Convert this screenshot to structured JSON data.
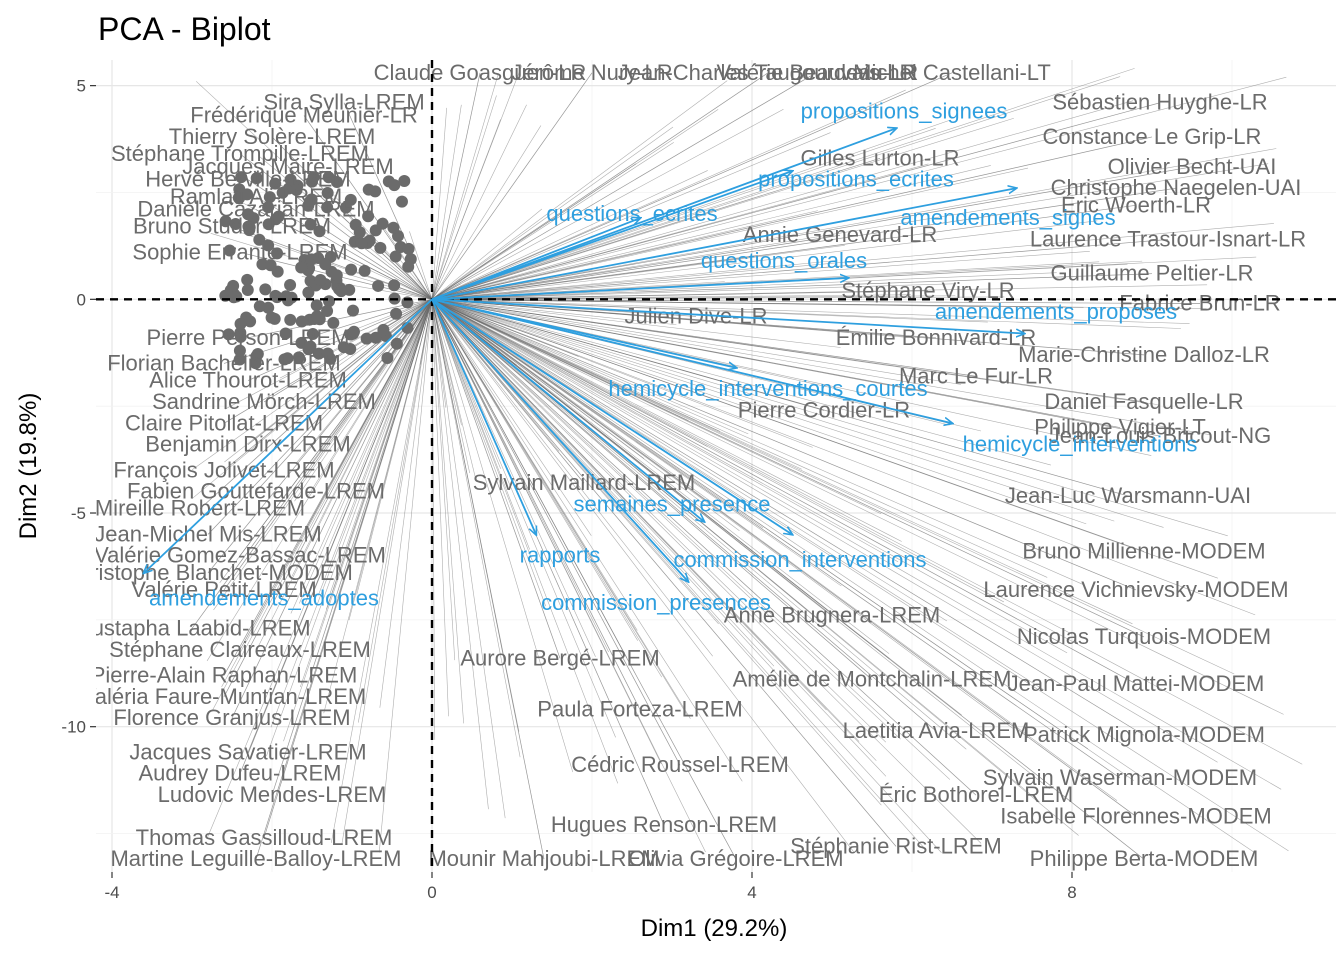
{
  "chart_data": {
    "type": "scatter",
    "title": "PCA - Biplot",
    "xlabel": "Dim1 (29.2%)",
    "ylabel": "Dim2 (19.8%)",
    "xlim": [
      -4.2,
      11.3
    ],
    "ylim": [
      -13.4,
      5.6
    ],
    "x_ticks": [
      -4,
      0,
      4,
      8
    ],
    "y_ticks": [
      5,
      0,
      -5,
      -10
    ],
    "grid": true,
    "reference_lines": {
      "x": 0,
      "y": 0
    },
    "colors": {
      "individuals": "#6b6b6b",
      "variables": "#2e9fdf",
      "reference": "#000000"
    },
    "variables": [
      {
        "name": "propositions_signees",
        "x": 5.8,
        "y": 4.0
      },
      {
        "name": "propositions_ecrites",
        "x": 4.5,
        "y": 3.0
      },
      {
        "name": "amendements_signes",
        "x": 7.3,
        "y": 2.6
      },
      {
        "name": "questions_ecrites",
        "x": 2.6,
        "y": 1.9
      },
      {
        "name": "questions_orales",
        "x": 5.2,
        "y": 0.5
      },
      {
        "name": "amendements_proposes",
        "x": 7.4,
        "y": -0.8
      },
      {
        "name": "hemicycle_interventions_courtes",
        "x": 3.8,
        "y": -1.6
      },
      {
        "name": "hemicycle_interventions",
        "x": 6.5,
        "y": -2.9
      },
      {
        "name": "semaines_presence",
        "x": 3.4,
        "y": -5.2
      },
      {
        "name": "rapports",
        "x": 1.3,
        "y": -5.5
      },
      {
        "name": "commission_interventions",
        "x": 4.5,
        "y": -5.5
      },
      {
        "name": "commission_presences",
        "x": 3.2,
        "y": -6.6
      },
      {
        "name": "amendements_adoptes",
        "x": -3.6,
        "y": -6.4
      }
    ],
    "variable_labels": [
      {
        "text": "propositions_signees",
        "x": 5.9,
        "y": 4.4
      },
      {
        "text": "propositions_ecrites",
        "x": 5.3,
        "y": 2.8
      },
      {
        "text": "amendements_signes",
        "x": 7.2,
        "y": 1.9
      },
      {
        "text": "questions_ecrites",
        "x": 2.5,
        "y": 2.0
      },
      {
        "text": "questions_orales",
        "x": 4.4,
        "y": 0.9
      },
      {
        "text": "amendements_proposes",
        "x": 7.8,
        "y": -0.3
      },
      {
        "text": "hemicycle_interventions_courtes",
        "x": 4.2,
        "y": -2.1
      },
      {
        "text": "hemicycle_interventions",
        "x": 8.1,
        "y": -3.4
      },
      {
        "text": "semaines_presence",
        "x": 3.0,
        "y": -4.8
      },
      {
        "text": "rapports",
        "x": 1.6,
        "y": -6.0
      },
      {
        "text": "commission_interventions",
        "x": 4.6,
        "y": -6.1
      },
      {
        "text": "commission_presences",
        "x": 2.8,
        "y": -7.1
      },
      {
        "text": "amendements_adoptes",
        "x": -2.1,
        "y": -7.0
      }
    ],
    "individual_labels": [
      {
        "text": "Sébastien Huyghe-LR",
        "x": 9.1,
        "y": 4.6
      },
      {
        "text": "Sira Sylla-LREM",
        "x": -1.1,
        "y": 4.6
      },
      {
        "text": "Frédérique Meunier-LR",
        "x": -1.6,
        "y": 4.3
      },
      {
        "text": "Thierry Solère-LREM",
        "x": -2.0,
        "y": 3.8
      },
      {
        "text": "Stéphane Trompille-LREM",
        "x": -2.4,
        "y": 3.4
      },
      {
        "text": "Jacques Maire-LREM",
        "x": -1.8,
        "y": 3.1
      },
      {
        "text": "Hervé Berville-LREM",
        "x": -2.3,
        "y": 2.8
      },
      {
        "text": "Ramlati Ali-LREM",
        "x": -2.2,
        "y": 2.4
      },
      {
        "text": "Danièle Cazarian-LREM",
        "x": -2.2,
        "y": 2.1
      },
      {
        "text": "Bruno Studer-LREM",
        "x": -2.5,
        "y": 1.7
      },
      {
        "text": "Sophie Errante-LREM",
        "x": -2.4,
        "y": 1.1
      },
      {
        "text": "Pierre Person-LREM",
        "x": -2.3,
        "y": -0.9
      },
      {
        "text": "Florian Bachelier-LREM",
        "x": -2.6,
        "y": -1.5
      },
      {
        "text": "Alice Thourot-LREM",
        "x": -2.3,
        "y": -1.9
      },
      {
        "text": "Sandrine Mörch-LREM",
        "x": -2.1,
        "y": -2.4
      },
      {
        "text": "Claire Pitollat-LREM",
        "x": -2.6,
        "y": -2.9
      },
      {
        "text": "Benjamin Dirx-LREM",
        "x": -2.3,
        "y": -3.4
      },
      {
        "text": "François Jolivet-LREM",
        "x": -2.6,
        "y": -4.0
      },
      {
        "text": "Fabien Gouttefarde-LREM",
        "x": -2.2,
        "y": -4.5
      },
      {
        "text": "Mireille Robert-LREM",
        "x": -2.9,
        "y": -4.9
      },
      {
        "text": "Jean-Michel Mis-LREM",
        "x": -2.8,
        "y": -5.5
      },
      {
        "text": "Valérie Gomez-Bassac-LREM",
        "x": -2.4,
        "y": -6.0
      },
      {
        "text": "Christophe Blanchet-MODEM",
        "x": -2.8,
        "y": -6.4
      },
      {
        "text": "Valérie Petit-LREM",
        "x": -2.6,
        "y": -6.8
      },
      {
        "text": "Mustapha Laabid-LREM",
        "x": -3.0,
        "y": -7.7
      },
      {
        "text": "Stéphane Claireaux-LREM",
        "x": -2.4,
        "y": -8.2
      },
      {
        "text": "Pierre-Alain Raphan-LREM",
        "x": -2.6,
        "y": -8.8
      },
      {
        "text": "Valéria Faure-Muntian-LREM",
        "x": -2.6,
        "y": -9.3
      },
      {
        "text": "Florence Granjus-LREM",
        "x": -2.5,
        "y": -9.8
      },
      {
        "text": "Jacques Savatier-LREM",
        "x": -2.3,
        "y": -10.6
      },
      {
        "text": "Audrey Dufeu-LREM",
        "x": -2.4,
        "y": -11.1
      },
      {
        "text": "Ludovic Mendes-LREM",
        "x": -2.0,
        "y": -11.6
      },
      {
        "text": "Thomas Gassilloud-LREM",
        "x": -2.1,
        "y": -12.6
      },
      {
        "text": "Martine Leguille-Balloy-LREM",
        "x": -2.2,
        "y": -13.1
      },
      {
        "text": "Laurence Trastour-Isnart-LR",
        "x": 9.2,
        "y": 1.4
      },
      {
        "text": "Constance Le Grip-LR",
        "x": 9.0,
        "y": 3.8
      },
      {
        "text": "Marie-Christine Dalloz-LR",
        "x": 8.9,
        "y": -1.3
      },
      {
        "text": "Éric Woerth-LR",
        "x": 8.8,
        "y": 2.2
      },
      {
        "text": "Daniel Fasquelle-LR",
        "x": 8.9,
        "y": -2.4
      },
      {
        "text": "Guillaume Peltier-LR",
        "x": 9.0,
        "y": 0.6
      },
      {
        "text": "Christophe Naegelen-UAI",
        "x": 9.3,
        "y": 2.6
      },
      {
        "text": "Jean-Louis Bricout-NG",
        "x": 9.1,
        "y": -3.2
      },
      {
        "text": "Jean-Luc Warsmann-UAI",
        "x": 8.7,
        "y": -4.6
      },
      {
        "text": "Philippe Vigier-LT",
        "x": 8.6,
        "y": -3.0
      },
      {
        "text": "Bruno Millienne-MODEM",
        "x": 8.9,
        "y": -5.9
      },
      {
        "text": "Laurence Vichnievsky-MODEM",
        "x": 8.8,
        "y": -6.8
      },
      {
        "text": "Nicolas Turquois-MODEM",
        "x": 8.9,
        "y": -7.9
      },
      {
        "text": "Jean-Paul Mattei-MODEM",
        "x": 8.8,
        "y": -9.0
      },
      {
        "text": "Patrick Mignola-MODEM",
        "x": 8.9,
        "y": -10.2
      },
      {
        "text": "Sylvain Waserman-MODEM",
        "x": 8.6,
        "y": -11.2
      },
      {
        "text": "Isabelle Florennes-MODEM",
        "x": 8.8,
        "y": -12.1
      },
      {
        "text": "Philippe Berta-MODEM",
        "x": 8.9,
        "y": -13.1
      },
      {
        "text": "Olivier Becht-UAI",
        "x": 9.5,
        "y": 3.1
      },
      {
        "text": "Fabrice Brun-LR",
        "x": 9.6,
        "y": -0.1
      },
      {
        "text": "Valérie Beauvais-LR",
        "x": 4.8,
        "y": 5.3
      },
      {
        "text": "Jean-Charles Taugourdeau-LR",
        "x": 4.2,
        "y": 5.3
      },
      {
        "text": "Jérôme Nury-LR",
        "x": 2.0,
        "y": 5.3
      },
      {
        "text": "Claude Goasguen-LR",
        "x": 0.6,
        "y": 5.3
      },
      {
        "text": "Michel Castellani-LT",
        "x": 6.5,
        "y": 5.3
      },
      {
        "text": "Stéphane Viry-LR",
        "x": 6.2,
        "y": 0.2
      },
      {
        "text": "Marc Le Fur-LR",
        "x": 6.8,
        "y": -1.8
      },
      {
        "text": "Gilles Lurton-LR",
        "x": 5.6,
        "y": 3.3
      },
      {
        "text": "Émilie Bonnivard-LR",
        "x": 6.3,
        "y": -0.9
      },
      {
        "text": "Pierre Cordier-LR",
        "x": 4.9,
        "y": -2.6
      },
      {
        "text": "Annie Genevard-LR",
        "x": 5.1,
        "y": 1.5
      },
      {
        "text": "Julien Dive-LR",
        "x": 3.3,
        "y": -0.4
      },
      {
        "text": "Sylvain Maillard-LREM",
        "x": 1.9,
        "y": -4.3
      },
      {
        "text": "Aurore Bergé-LREM",
        "x": 1.6,
        "y": -8.4
      },
      {
        "text": "Paula Forteza-LREM",
        "x": 2.6,
        "y": -9.6
      },
      {
        "text": "Cédric Roussel-LREM",
        "x": 3.1,
        "y": -10.9
      },
      {
        "text": "Hugues Renson-LREM",
        "x": 2.9,
        "y": -12.3
      },
      {
        "text": "Anne Brugnera-LREM",
        "x": 5.0,
        "y": -7.4
      },
      {
        "text": "Amélie de Montchalin-LREM",
        "x": 5.5,
        "y": -8.9
      },
      {
        "text": "Laetitia Avia-LREM",
        "x": 6.3,
        "y": -10.1
      },
      {
        "text": "Éric Bothorel-LREM",
        "x": 6.8,
        "y": -11.6
      },
      {
        "text": "Stéphanie Rist-LREM",
        "x": 5.8,
        "y": -12.8
      },
      {
        "text": "Olivia Grégoire-LREM",
        "x": 3.8,
        "y": -13.1
      },
      {
        "text": "Mounir Mahjoubi-LREM",
        "x": 1.4,
        "y": -13.1
      }
    ]
  }
}
